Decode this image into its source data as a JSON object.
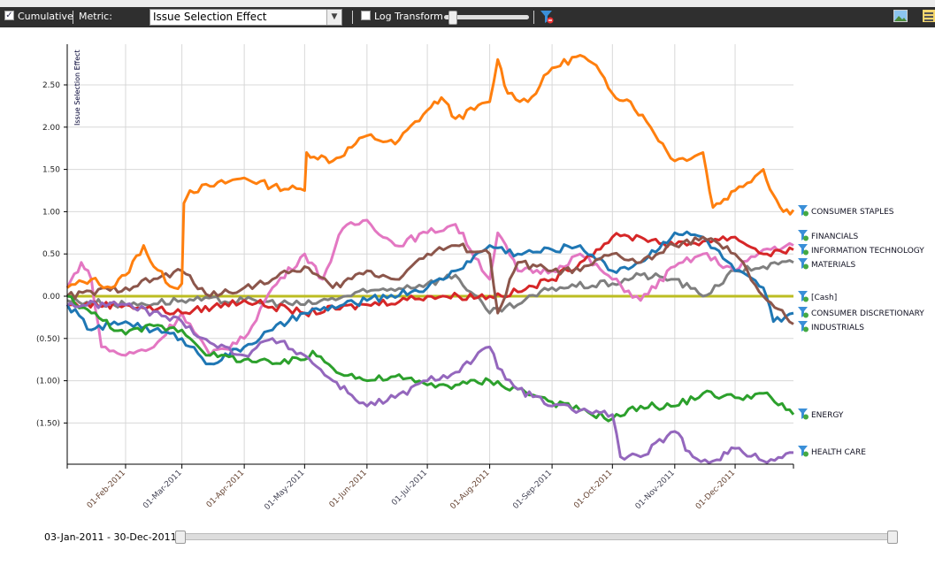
{
  "toolbar": {
    "cumulative_label": "Cumulative",
    "cumulative_checked": true,
    "metric_label": "Metric:",
    "metric_value": "Issue Selection Effect",
    "log_label": "Log Transform",
    "log_checked": false
  },
  "range": {
    "label": "03-Jan-2011 - 30-Dec-2011",
    "start": 0,
    "end": 1
  },
  "chart_data": {
    "type": "line",
    "ylabel": "Issue Selection Effect",
    "xlabel": "",
    "ylim": [
      -2.0,
      2.95
    ],
    "xlim": [
      "2011-01-03",
      "2011-12-30"
    ],
    "yticks": [
      {
        "v": 2.5,
        "t": "2.50"
      },
      {
        "v": 2.0,
        "t": "2.00"
      },
      {
        "v": 1.5,
        "t": "1.50"
      },
      {
        "v": 1.0,
        "t": "1.00"
      },
      {
        "v": 0.5,
        "t": "0.50"
      },
      {
        "v": 0,
        "t": "0.00"
      },
      {
        "v": -0.5,
        "t": "(0.50)"
      },
      {
        "v": -1.0,
        "t": "(1.00)"
      },
      {
        "v": -1.5,
        "t": "(1.50)"
      }
    ],
    "xticks": [
      {
        "d": "2011-02-01",
        "t": "01-Feb-2011"
      },
      {
        "d": "2011-03-01",
        "t": "01-Mar-2011"
      },
      {
        "d": "2011-04-01",
        "t": "01-Apr-2011"
      },
      {
        "d": "2011-05-01",
        "t": "01-May-2011"
      },
      {
        "d": "2011-06-01",
        "t": "01-Jun-2011"
      },
      {
        "d": "2011-07-01",
        "t": "01-Jul-2011"
      },
      {
        "d": "2011-08-01",
        "t": "01-Aug-2011"
      },
      {
        "d": "2011-09-01",
        "t": "01-Sep-2011"
      },
      {
        "d": "2011-10-01",
        "t": "01-Oct-2011"
      },
      {
        "d": "2011-11-01",
        "t": "01-Nov-2011"
      },
      {
        "d": "2011-12-01",
        "t": "01-Dec-2011"
      }
    ],
    "grid": true,
    "legend": "right-end-labels",
    "series": [
      {
        "name": "CONSUMER STAPLES",
        "color": "#ff7f0e",
        "points": [
          [
            "01-03",
            0.1
          ],
          [
            "01-15",
            0.2
          ],
          [
            "01-25",
            0.1
          ],
          [
            "02-01",
            0.25
          ],
          [
            "02-10",
            0.6
          ],
          [
            "02-15",
            0.35
          ],
          [
            "02-25",
            0.1
          ],
          [
            "03-01",
            0.15
          ],
          [
            "03-02",
            1.1
          ],
          [
            "03-05",
            1.25
          ],
          [
            "03-15",
            1.3
          ],
          [
            "04-01",
            1.4
          ],
          [
            "04-15",
            1.3
          ],
          [
            "05-01",
            1.25
          ],
          [
            "05-02",
            1.7
          ],
          [
            "05-15",
            1.6
          ],
          [
            "06-01",
            1.9
          ],
          [
            "06-15",
            1.8
          ],
          [
            "07-01",
            2.2
          ],
          [
            "07-08",
            2.35
          ],
          [
            "07-15",
            2.1
          ],
          [
            "08-01",
            2.3
          ],
          [
            "08-05",
            2.8
          ],
          [
            "08-10",
            2.4
          ],
          [
            "08-20",
            2.3
          ],
          [
            "09-01",
            2.7
          ],
          [
            "09-15",
            2.85
          ],
          [
            "09-25",
            2.65
          ],
          [
            "10-01",
            2.4
          ],
          [
            "10-10",
            2.3
          ],
          [
            "10-20",
            2.0
          ],
          [
            "11-01",
            1.6
          ],
          [
            "11-15",
            1.7
          ],
          [
            "11-20",
            1.05
          ],
          [
            "12-01",
            1.25
          ],
          [
            "12-15",
            1.5
          ],
          [
            "12-20",
            1.2
          ],
          [
            "12-25",
            1.0
          ],
          [
            "12-30",
            1.02
          ]
        ]
      },
      {
        "name": "FINANCIALS",
        "color": "#e377c2",
        "points": [
          [
            "01-03",
            0.1
          ],
          [
            "01-10",
            0.4
          ],
          [
            "01-15",
            0.2
          ],
          [
            "01-20",
            -0.6
          ],
          [
            "02-01",
            -0.7
          ],
          [
            "02-15",
            -0.6
          ],
          [
            "03-01",
            -0.2
          ],
          [
            "03-15",
            -0.7
          ],
          [
            "04-01",
            -0.5
          ],
          [
            "04-15",
            0.1
          ],
          [
            "05-01",
            0.5
          ],
          [
            "05-10",
            0.2
          ],
          [
            "05-20",
            0.8
          ],
          [
            "06-01",
            0.9
          ],
          [
            "06-15",
            0.6
          ],
          [
            "07-01",
            0.75
          ],
          [
            "07-15",
            0.85
          ],
          [
            "08-01",
            0.2
          ],
          [
            "08-05",
            0.75
          ],
          [
            "08-15",
            0.3
          ],
          [
            "09-01",
            0.3
          ],
          [
            "09-15",
            0.5
          ],
          [
            "10-01",
            0.2
          ],
          [
            "10-15",
            -0.05
          ],
          [
            "11-01",
            0.35
          ],
          [
            "11-15",
            0.5
          ],
          [
            "12-01",
            0.3
          ],
          [
            "12-15",
            0.55
          ],
          [
            "12-30",
            0.6
          ]
        ]
      },
      {
        "name": "INFORMATION TECHNOLOGY",
        "color": "#d62728",
        "points": [
          [
            "01-03",
            -0.1
          ],
          [
            "02-01",
            -0.1
          ],
          [
            "03-01",
            -0.2
          ],
          [
            "04-01",
            -0.05
          ],
          [
            "05-01",
            -0.2
          ],
          [
            "06-01",
            -0.1
          ],
          [
            "07-01",
            0.0
          ],
          [
            "08-01",
            0.0
          ],
          [
            "08-15",
            0.05
          ],
          [
            "09-01",
            0.2
          ],
          [
            "09-15",
            0.4
          ],
          [
            "10-01",
            0.7
          ],
          [
            "10-15",
            0.7
          ],
          [
            "11-01",
            0.6
          ],
          [
            "11-15",
            0.65
          ],
          [
            "12-01",
            0.7
          ],
          [
            "12-15",
            0.5
          ],
          [
            "12-30",
            0.55
          ]
        ]
      },
      {
        "name": "MATERIALS",
        "color": "#7f7f7f",
        "points": [
          [
            "01-03",
            -0.05
          ],
          [
            "02-01",
            -0.1
          ],
          [
            "03-01",
            -0.05
          ],
          [
            "04-01",
            -0.05
          ],
          [
            "05-01",
            -0.1
          ],
          [
            "06-01",
            0.05
          ],
          [
            "07-01",
            0.15
          ],
          [
            "07-15",
            0.25
          ],
          [
            "08-01",
            -0.2
          ],
          [
            "08-15",
            -0.1
          ],
          [
            "09-01",
            0.1
          ],
          [
            "10-01",
            0.15
          ],
          [
            "10-15",
            0.25
          ],
          [
            "11-01",
            0.2
          ],
          [
            "11-15",
            0.0
          ],
          [
            "12-01",
            0.3
          ],
          [
            "12-15",
            0.35
          ],
          [
            "12-30",
            0.4
          ]
        ]
      },
      {
        "name": "[Cash]",
        "color": "#bcbd22",
        "points": [
          [
            "01-03",
            0
          ],
          [
            "12-30",
            0
          ]
        ]
      },
      {
        "name": "CONSUMER DISCRETIONARY",
        "color": "#1f77b4",
        "points": [
          [
            "01-03",
            -0.1
          ],
          [
            "01-15",
            -0.4
          ],
          [
            "02-01",
            -0.3
          ],
          [
            "02-15",
            -0.4
          ],
          [
            "03-01",
            -0.5
          ],
          [
            "03-15",
            -0.8
          ],
          [
            "04-01",
            -0.6
          ],
          [
            "04-15",
            -0.4
          ],
          [
            "05-01",
            -0.2
          ],
          [
            "06-01",
            -0.05
          ],
          [
            "07-01",
            0.1
          ],
          [
            "07-15",
            0.3
          ],
          [
            "08-01",
            0.6
          ],
          [
            "08-15",
            0.5
          ],
          [
            "09-01",
            0.55
          ],
          [
            "09-15",
            0.6
          ],
          [
            "10-01",
            0.3
          ],
          [
            "10-15",
            0.4
          ],
          [
            "11-01",
            0.75
          ],
          [
            "11-15",
            0.7
          ],
          [
            "12-01",
            0.3
          ],
          [
            "12-15",
            0.1
          ],
          [
            "12-20",
            -0.3
          ],
          [
            "12-30",
            -0.2
          ]
        ]
      },
      {
        "name": "INDUSTRIALS",
        "color": "#8c564b",
        "points": [
          [
            "01-03",
            0.0
          ],
          [
            "02-01",
            0.1
          ],
          [
            "03-01",
            0.3
          ],
          [
            "03-15",
            0.0
          ],
          [
            "04-01",
            0.1
          ],
          [
            "04-15",
            0.2
          ],
          [
            "05-01",
            0.35
          ],
          [
            "05-15",
            0.1
          ],
          [
            "06-01",
            0.3
          ],
          [
            "06-15",
            0.2
          ],
          [
            "07-01",
            0.5
          ],
          [
            "07-15",
            0.6
          ],
          [
            "08-01",
            0.5
          ],
          [
            "08-05",
            -0.2
          ],
          [
            "08-15",
            0.4
          ],
          [
            "09-01",
            0.3
          ],
          [
            "09-15",
            0.3
          ],
          [
            "10-01",
            0.5
          ],
          [
            "10-15",
            0.4
          ],
          [
            "11-01",
            0.6
          ],
          [
            "11-15",
            0.7
          ],
          [
            "12-01",
            0.5
          ],
          [
            "12-15",
            0.0
          ],
          [
            "12-30",
            -0.33
          ]
        ]
      },
      {
        "name": "ENERGY",
        "color": "#2ca02c",
        "points": [
          [
            "01-03",
            0
          ],
          [
            "01-15",
            -0.2
          ],
          [
            "02-01",
            -0.45
          ],
          [
            "02-15",
            -0.35
          ],
          [
            "03-01",
            -0.4
          ],
          [
            "03-15",
            -0.7
          ],
          [
            "04-01",
            -0.75
          ],
          [
            "04-15",
            -0.8
          ],
          [
            "05-01",
            -0.75
          ],
          [
            "05-05",
            -0.65
          ],
          [
            "05-15",
            -0.85
          ],
          [
            "06-01",
            -1.0
          ],
          [
            "06-15",
            -0.95
          ],
          [
            "07-01",
            -1.05
          ],
          [
            "07-15",
            -1.05
          ],
          [
            "08-01",
            -1.0
          ],
          [
            "08-15",
            -1.1
          ],
          [
            "09-01",
            -1.25
          ],
          [
            "09-15",
            -1.35
          ],
          [
            "10-01",
            -1.45
          ],
          [
            "10-15",
            -1.3
          ],
          [
            "11-01",
            -1.3
          ],
          [
            "11-15",
            -1.15
          ],
          [
            "12-01",
            -1.2
          ],
          [
            "12-15",
            -1.15
          ],
          [
            "12-30",
            -1.4
          ]
        ]
      },
      {
        "name": "HEALTH CARE",
        "color": "#9467bd",
        "points": [
          [
            "01-03",
            -0.1
          ],
          [
            "02-01",
            -0.1
          ],
          [
            "03-01",
            -0.3
          ],
          [
            "03-15",
            -0.55
          ],
          [
            "04-01",
            -0.7
          ],
          [
            "04-15",
            -0.5
          ],
          [
            "05-01",
            -0.7
          ],
          [
            "05-15",
            -1.0
          ],
          [
            "06-01",
            -1.3
          ],
          [
            "06-15",
            -1.2
          ],
          [
            "07-01",
            -1.0
          ],
          [
            "07-15",
            -0.9
          ],
          [
            "08-01",
            -0.6
          ],
          [
            "08-05",
            -0.85
          ],
          [
            "08-15",
            -1.1
          ],
          [
            "09-01",
            -1.3
          ],
          [
            "09-15",
            -1.35
          ],
          [
            "10-01",
            -1.4
          ],
          [
            "10-05",
            -1.9
          ],
          [
            "10-15",
            -1.9
          ],
          [
            "11-01",
            -1.6
          ],
          [
            "11-10",
            -1.9
          ],
          [
            "11-20",
            -1.95
          ],
          [
            "12-01",
            -1.8
          ],
          [
            "12-15",
            -1.95
          ],
          [
            "12-30",
            -1.85
          ]
        ]
      }
    ]
  }
}
